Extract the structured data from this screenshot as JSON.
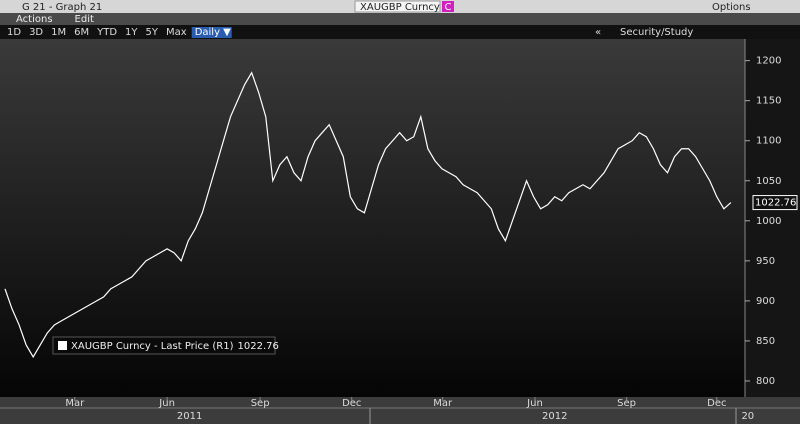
{
  "ui": {
    "window_title": "G 21 - Graph 21",
    "ticker": "XAUGBP Curncy",
    "ticker_badge": "C",
    "options": "Options",
    "menu": [
      "Actions",
      "Edit"
    ],
    "ranges": [
      "1D",
      "3D",
      "1M",
      "6M",
      "YTD",
      "1Y",
      "5Y",
      "Max"
    ],
    "frequency": "Daily ▼",
    "collapse": "«",
    "security_study": "Security/Study"
  },
  "chart_data": {
    "type": "line",
    "series": [
      {
        "name": "XAUGBP Curncy - Last Price (R1)",
        "color": "#ffffff",
        "values": [
          915,
          890,
          870,
          845,
          830,
          845,
          860,
          870,
          875,
          880,
          885,
          890,
          895,
          900,
          905,
          915,
          920,
          925,
          930,
          940,
          950,
          955,
          960,
          965,
          960,
          950,
          975,
          990,
          1010,
          1040,
          1070,
          1100,
          1130,
          1150,
          1170,
          1185,
          1160,
          1130,
          1050,
          1070,
          1080,
          1060,
          1050,
          1080,
          1100,
          1110,
          1120,
          1100,
          1080,
          1030,
          1015,
          1010,
          1040,
          1070,
          1090,
          1100,
          1110,
          1100,
          1105,
          1130,
          1090,
          1075,
          1065,
          1060,
          1055,
          1045,
          1040,
          1035,
          1025,
          1015,
          990,
          975,
          1000,
          1025,
          1050,
          1030,
          1015,
          1020,
          1030,
          1025,
          1035,
          1040,
          1045,
          1040,
          1050,
          1060,
          1075,
          1090,
          1095,
          1100,
          1110,
          1105,
          1090,
          1070,
          1060,
          1080,
          1090,
          1090,
          1080,
          1065,
          1050,
          1030,
          1015,
          1022.76
        ]
      }
    ],
    "xlim": [
      0,
      105
    ],
    "xticks": [
      {
        "value": 9.9,
        "label": "Mar"
      },
      {
        "value": 23,
        "label": "Jun"
      },
      {
        "value": 36.2,
        "label": "Sep"
      },
      {
        "value": 49.2,
        "label": "Dec"
      },
      {
        "value": 62.1,
        "label": "Mar"
      },
      {
        "value": 75.2,
        "label": "Jun"
      },
      {
        "value": 88.2,
        "label": "Sep"
      },
      {
        "value": 101,
        "label": "Dec"
      }
    ],
    "year_ticks": [
      {
        "value": 26.2,
        "label": "2011"
      },
      {
        "value": 78,
        "label": "2012"
      },
      {
        "value": 105.4,
        "label": "20"
      }
    ],
    "ylim": [
      780,
      1227
    ],
    "yticks": [
      800,
      850,
      900,
      950,
      1000,
      1050,
      1100,
      1150,
      1200
    ],
    "grid": false
  }
}
